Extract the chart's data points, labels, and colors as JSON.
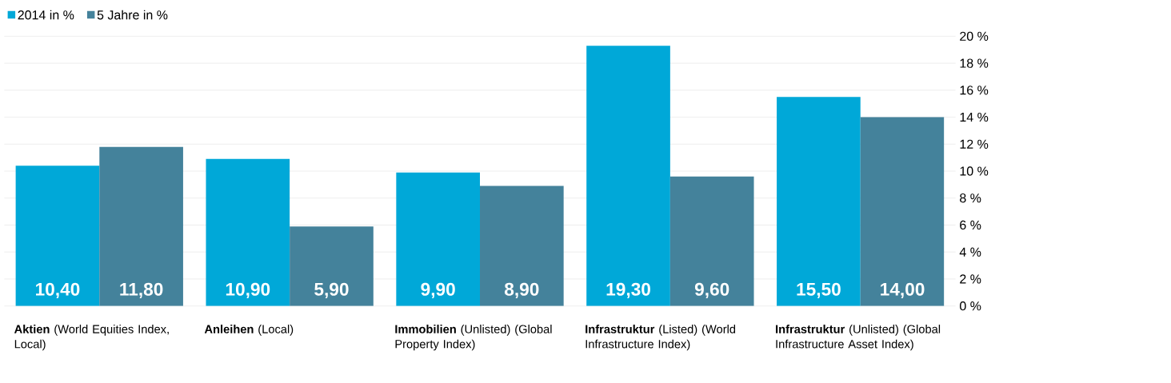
{
  "chart_data": {
    "type": "bar",
    "categories": [
      "**Aktien** (World Equities Index, Local)",
      "**Anleihen** (Local)",
      "**Immobilien** (Unlisted) (Global Property Index)",
      "**Infrastruktur** (Listed) (World Infrastructure Index)",
      "**Infrastruktur** (Unlisted) (Global Infrastructure Asset Index)"
    ],
    "series": [
      {
        "name": "2014 in %",
        "color": "#00a8d8",
        "values": [
          10.4,
          10.9,
          9.9,
          19.3,
          15.5
        ],
        "value_labels": [
          "10,40",
          "10,90",
          "9,90",
          "19,30",
          "15,50"
        ]
      },
      {
        "name": "5 Jahre in %",
        "color": "#44829b",
        "values": [
          11.8,
          5.9,
          8.9,
          9.6,
          14.0
        ],
        "value_labels": [
          "11,80",
          "5,90",
          "8,90",
          "9,60",
          "14,00"
        ]
      }
    ],
    "ylim": [
      0,
      20
    ],
    "yticks": [
      {
        "value": 0,
        "label": "0 %"
      },
      {
        "value": 2,
        "label": "2 %"
      },
      {
        "value": 4,
        "label": "4 %"
      },
      {
        "value": 6,
        "label": "6 %"
      },
      {
        "value": 8,
        "label": "8 %"
      },
      {
        "value": 10,
        "label": "10 %"
      },
      {
        "value": 12,
        "label": "12 %"
      },
      {
        "value": 14,
        "label": "14 %"
      },
      {
        "value": 16,
        "label": "16 %"
      },
      {
        "value": 18,
        "label": "18 %"
      },
      {
        "value": 20,
        "label": "20 %"
      }
    ],
    "grid": "y",
    "legend": "top left"
  }
}
